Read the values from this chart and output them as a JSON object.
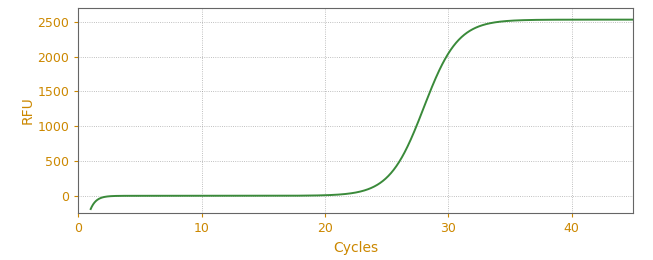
{
  "title": "",
  "xlabel": "Cycles",
  "ylabel": "RFU",
  "xlim": [
    0,
    45
  ],
  "ylim": [
    -250,
    2700
  ],
  "yticks": [
    0,
    500,
    1000,
    1500,
    2000,
    2500
  ],
  "xticks": [
    0,
    10,
    20,
    30,
    40
  ],
  "line_color": "#3a8a3a",
  "line_width": 1.4,
  "background_color": "#ffffff",
  "grid_color": "#888888",
  "sigmoid_L": 2530,
  "sigmoid_k": 0.72,
  "sigmoid_x0": 28.0,
  "x_start": 1,
  "x_end": 45,
  "label_color": "#cc8800",
  "tick_fontsize": 9,
  "axis_label_fontsize": 10,
  "figsize": [
    6.53,
    2.6
  ],
  "dpi": 100
}
